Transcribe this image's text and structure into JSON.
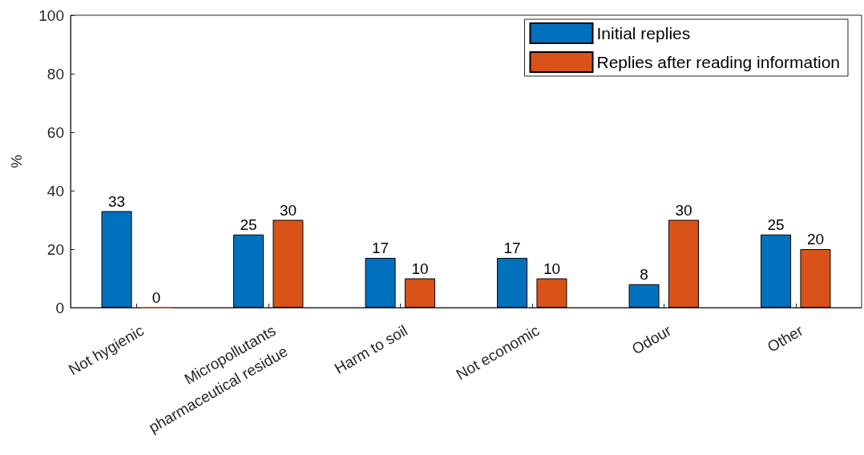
{
  "chart_data": {
    "type": "bar",
    "ylabel": "%",
    "categories": [
      "Not hygienic",
      "Micropollutants\npharmaceutical residue",
      "Harm to soil",
      "Not economic",
      "Odour",
      "Other"
    ],
    "series": [
      {
        "name": "Initial replies",
        "color": "#0072bd",
        "values": [
          33,
          25,
          17,
          17,
          8,
          25
        ]
      },
      {
        "name": "Replies after reading information",
        "color": "#d95319",
        "values": [
          0,
          30,
          10,
          10,
          30,
          20
        ]
      }
    ],
    "ylim": [
      0,
      100
    ],
    "yticks": [
      0,
      20,
      40,
      60,
      80,
      100
    ],
    "grid": false,
    "legend": "top right",
    "data_labels": true
  }
}
